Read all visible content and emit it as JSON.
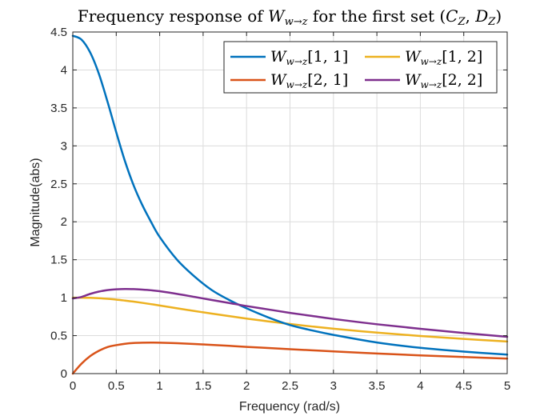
{
  "chart_data": {
    "type": "line",
    "title": "Frequency response of W_{w→z} for the first set (C_Z, D_Z)",
    "title_parts": {
      "prefix": "Frequency response of ",
      "symbol": "W",
      "subscript": "w→z",
      "suffix": " for the first set (",
      "c": "C",
      "c_sub": "Z",
      "sep": ", ",
      "d": "D",
      "d_sub": "Z",
      "close": ")"
    },
    "xlabel": "Frequency (rad/s)",
    "ylabel": "Magnitude(abs)",
    "xlim": [
      0,
      5
    ],
    "ylim": [
      0,
      4.5
    ],
    "xticks": [
      "0",
      "0.5",
      "1",
      "1.5",
      "2",
      "2.5",
      "3",
      "3.5",
      "4",
      "4.5",
      "5"
    ],
    "yticks": [
      "0",
      "0.5",
      "1",
      "1.5",
      "2",
      "2.5",
      "3",
      "3.5",
      "4",
      "4.5"
    ],
    "grid": true,
    "legend_position": "top-right",
    "x": [
      0,
      0.1,
      0.2,
      0.3,
      0.4,
      0.5,
      0.6,
      0.7,
      0.8,
      0.9,
      1.0,
      1.2,
      1.4,
      1.6,
      1.8,
      2.0,
      2.25,
      2.5,
      2.75,
      3.0,
      3.5,
      4.0,
      4.5,
      5.0
    ],
    "series": [
      {
        "name": "W_{w→z}[1, 1]",
        "label_base": "W",
        "label_sub": "w→z",
        "label_idx": "[1, 1]",
        "color": "#0072BD",
        "values": [
          4.45,
          4.4,
          4.23,
          3.95,
          3.58,
          3.18,
          2.8,
          2.48,
          2.22,
          2.0,
          1.8,
          1.5,
          1.28,
          1.1,
          0.97,
          0.86,
          0.74,
          0.64,
          0.57,
          0.51,
          0.41,
          0.34,
          0.29,
          0.25
        ]
      },
      {
        "name": "W_{w→z}[1, 2]",
        "label_base": "W",
        "label_sub": "w→z",
        "label_idx": "[1, 2]",
        "color": "#EDB120",
        "values": [
          1.0,
          1.0,
          0.998,
          0.993,
          0.985,
          0.975,
          0.962,
          0.948,
          0.932,
          0.915,
          0.897,
          0.86,
          0.825,
          0.79,
          0.757,
          0.725,
          0.688,
          0.653,
          0.621,
          0.592,
          0.54,
          0.495,
          0.457,
          0.423
        ]
      },
      {
        "name": "W_{w→z}[2, 1]",
        "label_base": "W",
        "label_sub": "w→z",
        "label_idx": "[2, 1]",
        "color": "#D95319",
        "values": [
          0.0,
          0.13,
          0.23,
          0.3,
          0.35,
          0.375,
          0.393,
          0.403,
          0.407,
          0.408,
          0.407,
          0.4,
          0.39,
          0.378,
          0.366,
          0.352,
          0.337,
          0.322,
          0.307,
          0.292,
          0.265,
          0.24,
          0.218,
          0.198
        ]
      },
      {
        "name": "W_{w→z}[2, 2]",
        "label_base": "W",
        "label_sub": "w→z",
        "label_idx": "[2, 2]",
        "color": "#7E2F8E",
        "values": [
          0.99,
          1.01,
          1.05,
          1.08,
          1.1,
          1.11,
          1.115,
          1.113,
          1.107,
          1.098,
          1.085,
          1.05,
          1.01,
          0.97,
          0.93,
          0.89,
          0.845,
          0.8,
          0.76,
          0.72,
          0.65,
          0.59,
          0.535,
          0.485
        ]
      }
    ]
  }
}
